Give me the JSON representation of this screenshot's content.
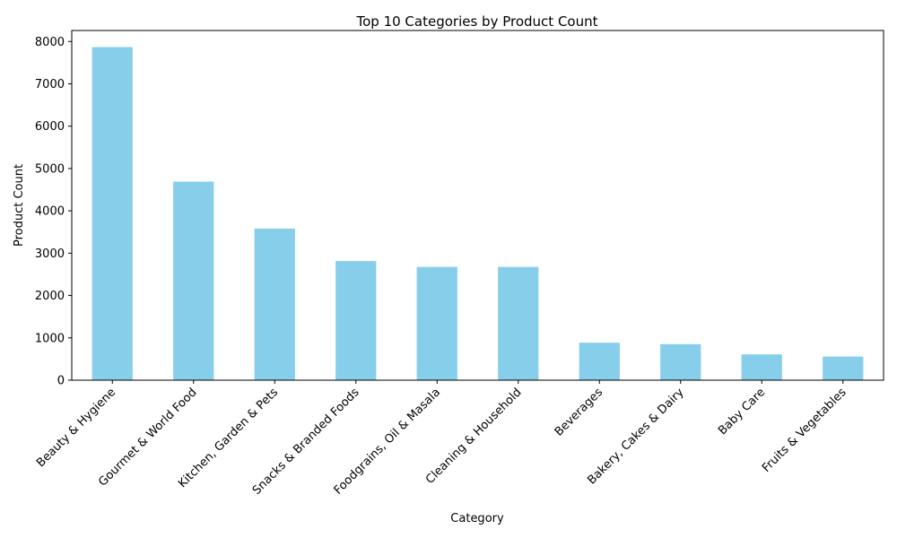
{
  "chart_data": {
    "type": "bar",
    "title": "Top 10 Categories by Product Count",
    "xlabel": "Category",
    "ylabel": "Product Count",
    "categories": [
      "Beauty & Hygiene",
      "Gourmet & World Food",
      "Kitchen, Garden & Pets",
      "Snacks & Branded Foods",
      "Foodgrains, Oil & Masala",
      "Cleaning & Household",
      "Beverages",
      "Bakery, Cakes & Dairy",
      "Baby Care",
      "Fruits & Vegetables"
    ],
    "values": [
      7867,
      4690,
      3580,
      2814,
      2676,
      2675,
      885,
      851,
      610,
      557
    ],
    "ylim": [
      0,
      8260
    ],
    "yticks": [
      0,
      1000,
      2000,
      3000,
      4000,
      5000,
      6000,
      7000,
      8000
    ],
    "bar_color": "#87ceeb",
    "grid": false,
    "legend": "none"
  }
}
